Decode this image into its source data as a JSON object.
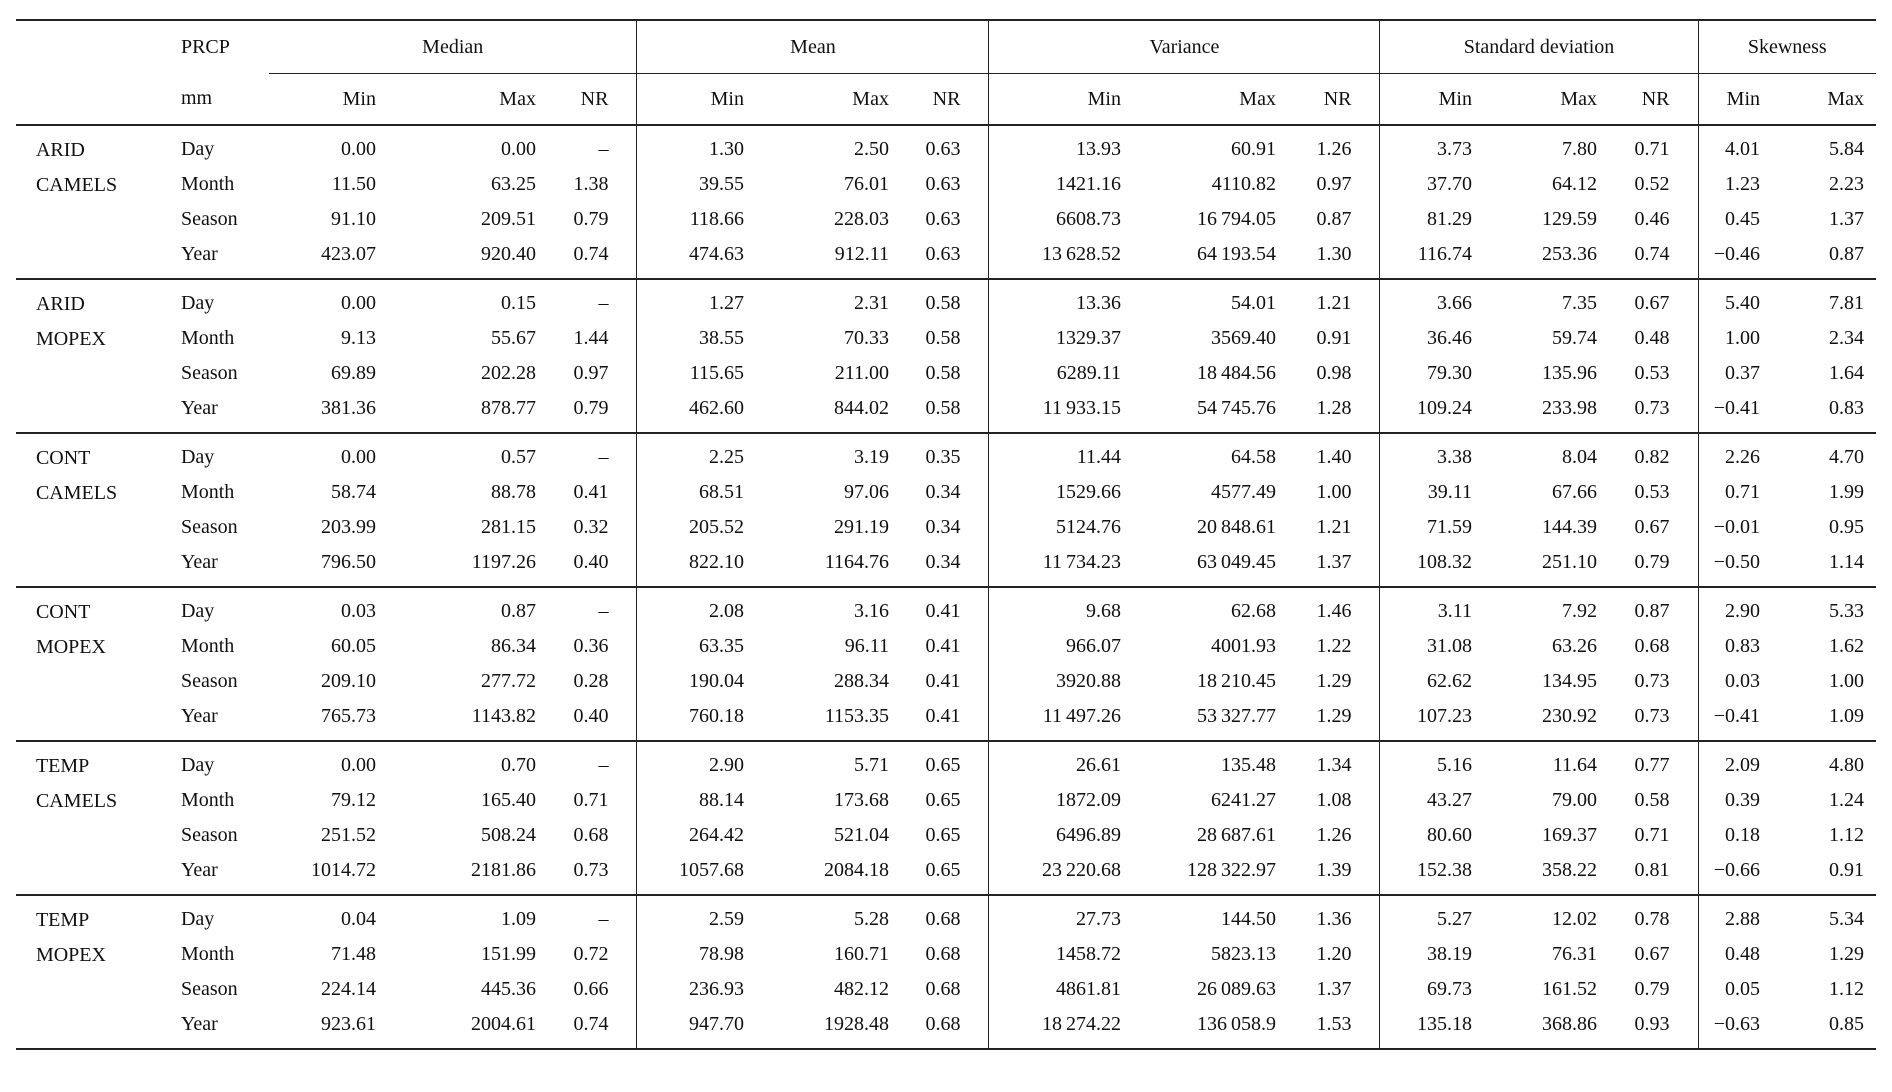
{
  "page": {
    "background": "#ffffff",
    "text_color": "#101010",
    "rule_color": "#232323"
  },
  "table": {
    "corner_header": {
      "line1": "PRCP",
      "line2": "mm"
    },
    "column_groups": [
      {
        "label": "Median",
        "columns": [
          "Min",
          "Max",
          "NR"
        ]
      },
      {
        "label": "Mean",
        "columns": [
          "Min",
          "Max",
          "NR"
        ]
      },
      {
        "label": "Variance",
        "columns": [
          "Min",
          "Max",
          "NR"
        ]
      },
      {
        "label": "Standard deviation",
        "columns": [
          "Min",
          "Max",
          "NR"
        ]
      },
      {
        "label": "Skewness",
        "columns": [
          "Min",
          "Max"
        ]
      }
    ],
    "row_groups": [
      {
        "name_line1": "ARID",
        "name_line2": "CAMELS",
        "rows": [
          {
            "period": "Day",
            "values": [
              "0.00",
              "0.00",
              "–",
              "1.30",
              "2.50",
              "0.63",
              "13.93",
              "60.91",
              "1.26",
              "3.73",
              "7.80",
              "0.71",
              "4.01",
              "5.84"
            ]
          },
          {
            "period": "Month",
            "values": [
              "11.50",
              "63.25",
              "1.38",
              "39.55",
              "76.01",
              "0.63",
              "1421.16",
              "4110.82",
              "0.97",
              "37.70",
              "64.12",
              "0.52",
              "1.23",
              "2.23"
            ]
          },
          {
            "period": "Season",
            "values": [
              "91.10",
              "209.51",
              "0.79",
              "118.66",
              "228.03",
              "0.63",
              "6608.73",
              "16 794.05",
              "0.87",
              "81.29",
              "129.59",
              "0.46",
              "0.45",
              "1.37"
            ]
          },
          {
            "period": "Year",
            "values": [
              "423.07",
              "920.40",
              "0.74",
              "474.63",
              "912.11",
              "0.63",
              "13 628.52",
              "64 193.54",
              "1.30",
              "116.74",
              "253.36",
              "0.74",
              "−0.46",
              "0.87"
            ]
          }
        ]
      },
      {
        "name_line1": "ARID",
        "name_line2": "MOPEX",
        "rows": [
          {
            "period": "Day",
            "values": [
              "0.00",
              "0.15",
              "–",
              "1.27",
              "2.31",
              "0.58",
              "13.36",
              "54.01",
              "1.21",
              "3.66",
              "7.35",
              "0.67",
              "5.40",
              "7.81"
            ]
          },
          {
            "period": "Month",
            "values": [
              "9.13",
              "55.67",
              "1.44",
              "38.55",
              "70.33",
              "0.58",
              "1329.37",
              "3569.40",
              "0.91",
              "36.46",
              "59.74",
              "0.48",
              "1.00",
              "2.34"
            ]
          },
          {
            "period": "Season",
            "values": [
              "69.89",
              "202.28",
              "0.97",
              "115.65",
              "211.00",
              "0.58",
              "6289.11",
              "18 484.56",
              "0.98",
              "79.30",
              "135.96",
              "0.53",
              "0.37",
              "1.64"
            ]
          },
          {
            "period": "Year",
            "values": [
              "381.36",
              "878.77",
              "0.79",
              "462.60",
              "844.02",
              "0.58",
              "11 933.15",
              "54 745.76",
              "1.28",
              "109.24",
              "233.98",
              "0.73",
              "−0.41",
              "0.83"
            ]
          }
        ]
      },
      {
        "name_line1": "CONT",
        "name_line2": "CAMELS",
        "rows": [
          {
            "period": "Day",
            "values": [
              "0.00",
              "0.57",
              "–",
              "2.25",
              "3.19",
              "0.35",
              "11.44",
              "64.58",
              "1.40",
              "3.38",
              "8.04",
              "0.82",
              "2.26",
              "4.70"
            ]
          },
          {
            "period": "Month",
            "values": [
              "58.74",
              "88.78",
              "0.41",
              "68.51",
              "97.06",
              "0.34",
              "1529.66",
              "4577.49",
              "1.00",
              "39.11",
              "67.66",
              "0.53",
              "0.71",
              "1.99"
            ]
          },
          {
            "period": "Season",
            "values": [
              "203.99",
              "281.15",
              "0.32",
              "205.52",
              "291.19",
              "0.34",
              "5124.76",
              "20 848.61",
              "1.21",
              "71.59",
              "144.39",
              "0.67",
              "−0.01",
              "0.95"
            ]
          },
          {
            "period": "Year",
            "values": [
              "796.50",
              "1197.26",
              "0.40",
              "822.10",
              "1164.76",
              "0.34",
              "11 734.23",
              "63 049.45",
              "1.37",
              "108.32",
              "251.10",
              "0.79",
              "−0.50",
              "1.14"
            ]
          }
        ]
      },
      {
        "name_line1": "CONT",
        "name_line2": "MOPEX",
        "rows": [
          {
            "period": "Day",
            "values": [
              "0.03",
              "0.87",
              "–",
              "2.08",
              "3.16",
              "0.41",
              "9.68",
              "62.68",
              "1.46",
              "3.11",
              "7.92",
              "0.87",
              "2.90",
              "5.33"
            ]
          },
          {
            "period": "Month",
            "values": [
              "60.05",
              "86.34",
              "0.36",
              "63.35",
              "96.11",
              "0.41",
              "966.07",
              "4001.93",
              "1.22",
              "31.08",
              "63.26",
              "0.68",
              "0.83",
              "1.62"
            ]
          },
          {
            "period": "Season",
            "values": [
              "209.10",
              "277.72",
              "0.28",
              "190.04",
              "288.34",
              "0.41",
              "3920.88",
              "18 210.45",
              "1.29",
              "62.62",
              "134.95",
              "0.73",
              "0.03",
              "1.00"
            ]
          },
          {
            "period": "Year",
            "values": [
              "765.73",
              "1143.82",
              "0.40",
              "760.18",
              "1153.35",
              "0.41",
              "11 497.26",
              "53 327.77",
              "1.29",
              "107.23",
              "230.92",
              "0.73",
              "−0.41",
              "1.09"
            ]
          }
        ]
      },
      {
        "name_line1": "TEMP",
        "name_line2": "CAMELS",
        "rows": [
          {
            "period": "Day",
            "values": [
              "0.00",
              "0.70",
              "–",
              "2.90",
              "5.71",
              "0.65",
              "26.61",
              "135.48",
              "1.34",
              "5.16",
              "11.64",
              "0.77",
              "2.09",
              "4.80"
            ]
          },
          {
            "period": "Month",
            "values": [
              "79.12",
              "165.40",
              "0.71",
              "88.14",
              "173.68",
              "0.65",
              "1872.09",
              "6241.27",
              "1.08",
              "43.27",
              "79.00",
              "0.58",
              "0.39",
              "1.24"
            ]
          },
          {
            "period": "Season",
            "values": [
              "251.52",
              "508.24",
              "0.68",
              "264.42",
              "521.04",
              "0.65",
              "6496.89",
              "28 687.61",
              "1.26",
              "80.60",
              "169.37",
              "0.71",
              "0.18",
              "1.12"
            ]
          },
          {
            "period": "Year",
            "values": [
              "1014.72",
              "2181.86",
              "0.73",
              "1057.68",
              "2084.18",
              "0.65",
              "23 220.68",
              "128 322.97",
              "1.39",
              "152.38",
              "358.22",
              "0.81",
              "−0.66",
              "0.91"
            ]
          }
        ]
      },
      {
        "name_line1": "TEMP",
        "name_line2": "MOPEX",
        "rows": [
          {
            "period": "Day",
            "values": [
              "0.04",
              "1.09",
              "–",
              "2.59",
              "5.28",
              "0.68",
              "27.73",
              "144.50",
              "1.36",
              "5.27",
              "12.02",
              "0.78",
              "2.88",
              "5.34"
            ]
          },
          {
            "period": "Month",
            "values": [
              "71.48",
              "151.99",
              "0.72",
              "78.98",
              "160.71",
              "0.68",
              "1458.72",
              "5823.13",
              "1.20",
              "38.19",
              "76.31",
              "0.67",
              "0.48",
              "1.29"
            ]
          },
          {
            "period": "Season",
            "values": [
              "224.14",
              "445.36",
              "0.66",
              "236.93",
              "482.12",
              "0.68",
              "4861.81",
              "26 089.63",
              "1.37",
              "69.73",
              "161.52",
              "0.79",
              "0.05",
              "1.12"
            ]
          },
          {
            "period": "Year",
            "values": [
              "923.61",
              "2004.61",
              "0.74",
              "947.70",
              "1928.48",
              "0.68",
              "18 274.22",
              "136 058.9",
              "1.53",
              "135.18",
              "368.86",
              "0.93",
              "−0.63",
              "0.85"
            ]
          }
        ]
      }
    ]
  }
}
